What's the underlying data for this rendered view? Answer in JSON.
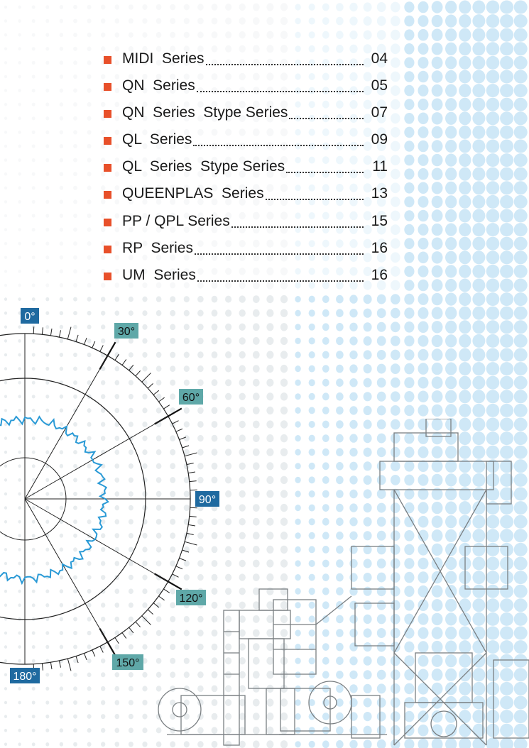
{
  "toc": {
    "entries": [
      {
        "label": "MIDI  Series",
        "page": "04"
      },
      {
        "label": "QN  Series",
        "page": "05"
      },
      {
        "label": "QN  Series  Stype Series",
        "page": "07"
      },
      {
        "label": "QL  Series",
        "page": "09"
      },
      {
        "label": "QL  Series  Stype Series",
        "page": "11"
      },
      {
        "label": "QUEENPLAS  Series",
        "page": "13"
      },
      {
        "label": "PP / QPL Series",
        "page": "15"
      },
      {
        "label": "RP  Series",
        "page": "16"
      },
      {
        "label": "UM  Series",
        "page": "16"
      }
    ]
  },
  "polar": {
    "labels": {
      "deg0": "0°",
      "deg30": "30°",
      "deg60": "60°",
      "deg90": "90°",
      "deg120": "120°",
      "deg150": "150°",
      "deg180": "180°"
    }
  },
  "colors": {
    "bullet": "#e8502a",
    "dot_blue": "#cfe8f7",
    "dot_grey": "#e8ecee",
    "label_dark_blue": "#1f6aa0",
    "label_teal": "#5fa8a8",
    "trace": "#2a9ad6"
  }
}
